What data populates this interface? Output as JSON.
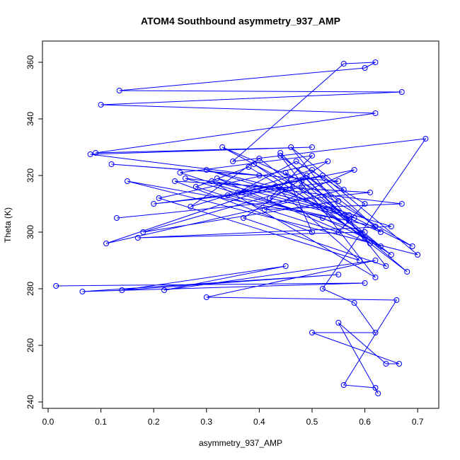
{
  "chart_data": {
    "type": "line",
    "title": "ATOM4 Southbound asymmetry_937_AMP",
    "x_label": "asymmetry_937_AMP",
    "y_label": "Theta (K)",
    "marker": "circle",
    "xlim": [
      -0.0107,
      0.74
    ],
    "ylim": [
      237.75,
      367.5
    ],
    "xticks": [
      {
        "value": 0,
        "label": "0.0"
      },
      0.1,
      0.2,
      0.3,
      0.4,
      0.5,
      0.6,
      0.7
    ],
    "yticks": [
      240,
      260,
      280,
      300,
      320,
      340,
      360
    ],
    "series": [
      {
        "color": "#0000ff",
        "x": [
          0.015,
          0.6,
          0.065,
          0.55,
          0.14,
          0.45,
          0.22,
          0.62,
          0.3,
          0.66,
          0.56,
          0.62,
          0.625,
          0.55,
          0.64,
          0.665,
          0.5,
          0.62,
          0.58,
          0.52,
          0.715,
          0.35,
          0.56,
          0.62,
          0.6,
          0.135,
          0.67,
          0.1,
          0.62,
          0.09,
          0.5,
          0.08,
          0.4,
          0.12,
          0.55,
          0.2,
          0.45,
          0.3,
          0.65,
          0.17,
          0.6,
          0.25,
          0.5,
          0.42,
          0.58,
          0.33,
          0.48,
          0.63,
          0.38,
          0.28,
          0.55,
          0.6,
          0.47,
          0.36,
          0.52,
          0.7,
          0.15,
          0.57,
          0.44,
          0.61,
          0.32,
          0.54,
          0.68,
          0.4,
          0.27,
          0.5,
          0.63,
          0.43,
          0.59,
          0.21,
          0.53,
          0.37,
          0.64,
          0.46,
          0.56,
          0.11,
          0.49,
          0.62,
          0.34,
          0.58,
          0.41,
          0.67,
          0.26,
          0.52,
          0.6,
          0.39,
          0.65,
          0.48,
          0.18,
          0.55,
          0.44,
          0.62,
          0.31,
          0.57,
          0.69,
          0.45,
          0.5,
          0.24,
          0.61,
          0.13
        ],
        "values": [
          281,
          282,
          279,
          285,
          279.5,
          288,
          279.5,
          290,
          277,
          276,
          246,
          245,
          243,
          268,
          253.5,
          253.5,
          264.5,
          264.5,
          275,
          280,
          333,
          325,
          359.5,
          360,
          358,
          350,
          349.5,
          345,
          342,
          328,
          330,
          327.5,
          320,
          324,
          318,
          310,
          315,
          322,
          302,
          298,
          300,
          321,
          327,
          312,
          305,
          330,
          318,
          295,
          323,
          316,
          300,
          310,
          325,
          314,
          320,
          292,
          318,
          304,
          328,
          296,
          319,
          308,
          286,
          326,
          309,
          322,
          300,
          316,
          290,
          312,
          325,
          305,
          288,
          330,
          315,
          296,
          320,
          302,
          313,
          322,
          308,
          310,
          319,
          305,
          298,
          324,
          292,
          316,
          300,
          311,
          327,
          284,
          318,
          306,
          295,
          321,
          300,
          318,
          314,
          305
        ]
      }
    ]
  }
}
